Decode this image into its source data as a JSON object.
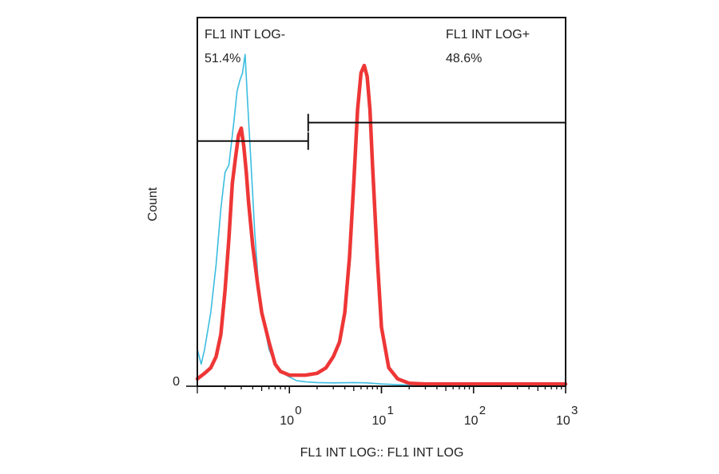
{
  "chart_data": {
    "type": "line",
    "xscale": "log",
    "xlim": [
      0.1,
      1000
    ],
    "ylim": [
      0,
      100
    ],
    "ylabel": "Count",
    "xlabel": "FL1 INT LOG:: FL1 INT LOG",
    "y_ticks": [
      {
        "value": 0,
        "label": "0"
      }
    ],
    "x_ticks": [
      {
        "value": 1,
        "base": "10",
        "exp": "0"
      },
      {
        "value": 10,
        "base": "10",
        "exp": "1"
      },
      {
        "value": 100,
        "base": "10",
        "exp": "2"
      },
      {
        "value": 1000,
        "base": "10",
        "exp": "3"
      }
    ],
    "gates": [
      {
        "label": "FL1 INT LOG-",
        "percent": "51.4%",
        "x_range": [
          0.1,
          1.6
        ],
        "y": 66.5
      },
      {
        "label": "FL1 INT LOG+",
        "percent": "48.6%",
        "x_range": [
          1.6,
          1000
        ],
        "y": 71.5
      }
    ],
    "series": [
      {
        "color": "#3bbde0",
        "stroke_width": 1.6,
        "x": [
          0.1,
          0.11,
          0.12,
          0.14,
          0.16,
          0.18,
          0.2,
          0.22,
          0.25,
          0.27,
          0.29,
          0.31,
          0.33,
          0.35,
          0.38,
          0.42,
          0.46,
          0.52,
          0.6,
          0.7,
          0.85,
          1.0,
          1.2,
          1.5,
          2.0,
          3.0,
          5.0,
          7.0,
          10.0,
          20.0,
          50.0,
          100.0,
          1000.0
        ],
        "y": [
          10,
          6,
          10,
          20,
          33,
          48,
          58,
          60,
          72,
          80,
          83,
          85,
          90,
          78,
          62,
          42,
          28,
          18,
          10,
          6,
          3.5,
          2.5,
          1.5,
          1.2,
          1,
          0.9,
          1,
          0.9,
          0.6,
          0.3,
          0.2,
          0.1,
          0.1
        ]
      },
      {
        "color": "#ee3636",
        "stroke_width": 4.5,
        "x": [
          0.1,
          0.12,
          0.14,
          0.16,
          0.18,
          0.2,
          0.22,
          0.24,
          0.26,
          0.28,
          0.3,
          0.32,
          0.34,
          0.36,
          0.4,
          0.45,
          0.5,
          0.6,
          0.7,
          0.8,
          1.0,
          1.2,
          1.5,
          2.0,
          2.5,
          3.0,
          3.5,
          4.0,
          4.5,
          5.0,
          5.5,
          6.0,
          6.5,
          7.0,
          7.5,
          8.0,
          9.0,
          10.0,
          12.0,
          15.0,
          20.0,
          30.0,
          50.0,
          100.0,
          1000.0
        ],
        "y": [
          2,
          3.5,
          5,
          8,
          14,
          26,
          40,
          55,
          62,
          68,
          70,
          65,
          58,
          50,
          38,
          28,
          20,
          12,
          6,
          4,
          3,
          3,
          3,
          3.5,
          5,
          8,
          12,
          20,
          35,
          55,
          75,
          85,
          87,
          84,
          75,
          60,
          35,
          16,
          5,
          2,
          0.8,
          0.6,
          0.6,
          0.6,
          0.6
        ]
      }
    ]
  }
}
